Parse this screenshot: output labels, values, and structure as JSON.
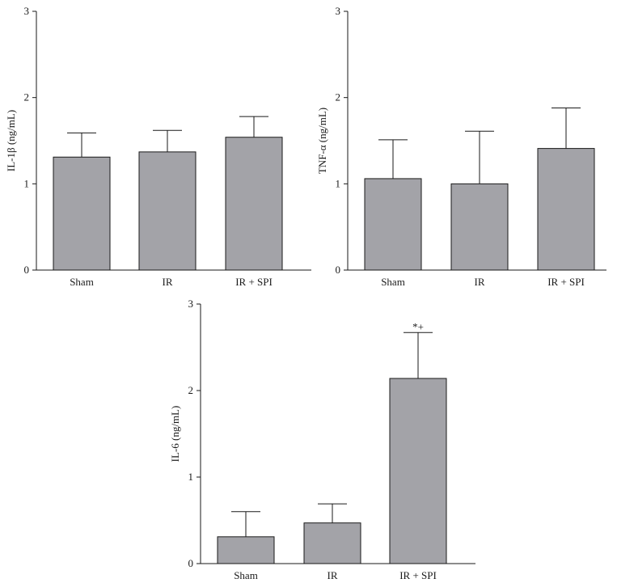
{
  "colors": {
    "bar_fill": "#a3a3a8",
    "bar_stroke": "#1a1a1a",
    "axis": "#1a1a1a"
  },
  "chart_data": [
    {
      "type": "bar",
      "ylabel": "IL-1β (ng/mL)",
      "categories": [
        "Sham",
        "IR",
        "IR + SPI"
      ],
      "values": [
        1.31,
        1.37,
        1.54
      ],
      "errors": [
        0.28,
        0.25,
        0.24
      ],
      "ylim": [
        0,
        3
      ],
      "yticks": [
        0,
        1,
        2,
        3
      ],
      "annotations": [
        "",
        "",
        ""
      ],
      "grid": false
    },
    {
      "type": "bar",
      "ylabel": "TNF-α (ng/mL)",
      "categories": [
        "Sham",
        "IR",
        "IR + SPI"
      ],
      "values": [
        1.06,
        1.0,
        1.41
      ],
      "errors": [
        0.45,
        0.61,
        0.47
      ],
      "ylim": [
        0,
        3
      ],
      "yticks": [
        0,
        1,
        2,
        3
      ],
      "annotations": [
        "",
        "",
        ""
      ],
      "grid": false
    },
    {
      "type": "bar",
      "ylabel": "IL-6 (ng/mL)",
      "categories": [
        "Sham",
        "IR",
        "IR + SPI"
      ],
      "values": [
        0.31,
        0.47,
        2.14
      ],
      "errors": [
        0.29,
        0.22,
        0.53
      ],
      "ylim": [
        0,
        3
      ],
      "yticks": [
        0,
        1,
        2,
        3
      ],
      "annotations": [
        "",
        "",
        "*+"
      ],
      "grid": false
    }
  ]
}
